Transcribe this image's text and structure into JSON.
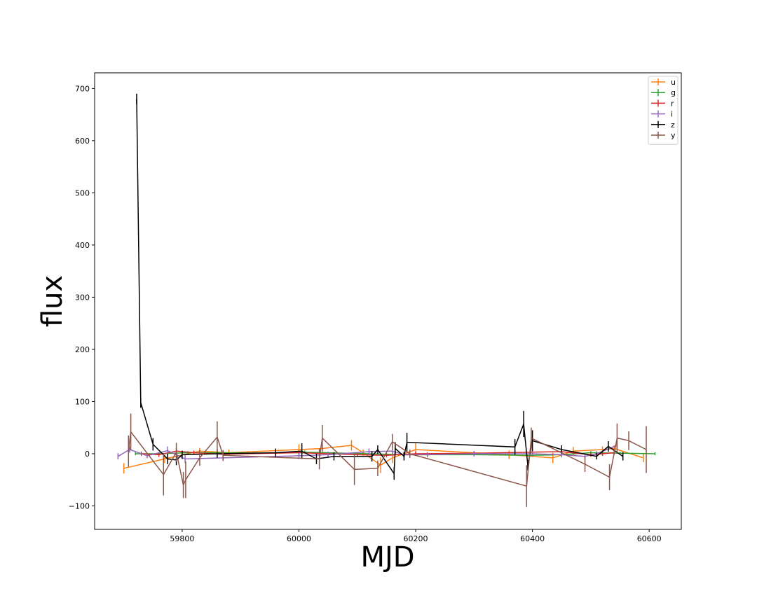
{
  "chart_data": {
    "type": "line",
    "xlabel": "MJD",
    "ylabel": "flux",
    "xlim": [
      59650,
      60655
    ],
    "ylim": [
      -145,
      730
    ],
    "xticks": [
      59800,
      60000,
      60200,
      60400,
      60600
    ],
    "yticks": [
      -100,
      0,
      100,
      200,
      300,
      400,
      500,
      600,
      700
    ],
    "legend_position": "top-right",
    "error_bars": true,
    "series": [
      {
        "name": "u",
        "color": "#ff7f0e",
        "points": [
          [
            59700,
            -28,
            10
          ],
          [
            59770,
            -10,
            8
          ],
          [
            59830,
            5,
            6
          ],
          [
            59880,
            2,
            6
          ],
          [
            60000,
            8,
            10
          ],
          [
            60040,
            10,
            9
          ],
          [
            60090,
            16,
            10
          ],
          [
            60110,
            2,
            6
          ],
          [
            60140,
            -22,
            15
          ],
          [
            60160,
            -8,
            10
          ],
          [
            60200,
            8,
            12
          ],
          [
            60360,
            -2,
            8
          ],
          [
            60435,
            -8,
            10
          ],
          [
            60470,
            5,
            8
          ],
          [
            60520,
            8,
            6
          ],
          [
            60540,
            10,
            6
          ],
          [
            60590,
            -8,
            8
          ]
        ]
      },
      {
        "name": "g",
        "color": "#2ca02c",
        "points": [
          [
            59720,
            0,
            3
          ],
          [
            59760,
            0,
            3
          ],
          [
            59810,
            2,
            3
          ],
          [
            59860,
            2,
            3
          ],
          [
            59960,
            1,
            3
          ],
          [
            60010,
            3,
            3
          ],
          [
            60120,
            0,
            3
          ],
          [
            60180,
            -2,
            3
          ],
          [
            60300,
            -2,
            3
          ],
          [
            60400,
            -3,
            3
          ],
          [
            60450,
            -2,
            3
          ],
          [
            60500,
            2,
            3
          ],
          [
            60550,
            1,
            3
          ],
          [
            60610,
            0,
            3
          ]
        ]
      },
      {
        "name": "r",
        "color": "#d62728",
        "points": [
          [
            59730,
            0,
            4
          ],
          [
            59760,
            -2,
            4
          ],
          [
            59790,
            5,
            6
          ],
          [
            59820,
            2,
            4
          ],
          [
            59870,
            -1,
            4
          ],
          [
            60000,
            2,
            4
          ],
          [
            60100,
            -2,
            4
          ],
          [
            60150,
            -3,
            4
          ],
          [
            60200,
            0,
            4
          ],
          [
            60300,
            1,
            4
          ],
          [
            60400,
            3,
            5
          ],
          [
            60450,
            4,
            4
          ],
          [
            60500,
            -2,
            4
          ],
          [
            60520,
            0,
            4
          ],
          [
            60540,
            2,
            4
          ]
        ]
      },
      {
        "name": "i",
        "color": "#9467bd",
        "points": [
          [
            59690,
            -5,
            6
          ],
          [
            59710,
            8,
            6
          ],
          [
            59740,
            -4,
            5
          ],
          [
            59775,
            6,
            8
          ],
          [
            59805,
            -10,
            8
          ],
          [
            59870,
            -8,
            6
          ],
          [
            60000,
            -4,
            6
          ],
          [
            60050,
            -2,
            6
          ],
          [
            60120,
            4,
            6
          ],
          [
            60160,
            5,
            7
          ],
          [
            60180,
            -2,
            6
          ],
          [
            60220,
            -2,
            5
          ],
          [
            60300,
            0,
            5
          ],
          [
            60400,
            0,
            5
          ],
          [
            60450,
            -2,
            5
          ],
          [
            60490,
            -5,
            6
          ],
          [
            60510,
            0,
            5
          ],
          [
            60545,
            16,
            6
          ]
        ]
      },
      {
        "name": "z",
        "color": "#000000",
        "points": [
          [
            59722,
            680,
            10
          ],
          [
            59729,
            98,
            10
          ],
          [
            59750,
            18,
            12
          ],
          [
            59775,
            -10,
            10
          ],
          [
            59790,
            -12,
            10
          ],
          [
            59800,
            -2,
            8
          ],
          [
            59860,
            0,
            8
          ],
          [
            59960,
            2,
            8
          ],
          [
            60005,
            5,
            15
          ],
          [
            60030,
            -10,
            10
          ],
          [
            60060,
            -5,
            8
          ],
          [
            60125,
            -5,
            10
          ],
          [
            60135,
            8,
            8
          ],
          [
            60165,
            10,
            12
          ],
          [
            60163,
            -38,
            12
          ],
          [
            60180,
            -5,
            8
          ],
          [
            60185,
            22,
            18
          ],
          [
            60370,
            13,
            15
          ],
          [
            60385,
            57,
            25
          ],
          [
            60392,
            -22,
            10
          ],
          [
            60400,
            25,
            20
          ],
          [
            60450,
            8,
            8
          ],
          [
            60510,
            -5,
            6
          ],
          [
            60530,
            14,
            10
          ],
          [
            60555,
            -5,
            8
          ]
        ]
      },
      {
        "name": "y",
        "color": "#8c564b",
        "points": [
          [
            59708,
            5,
            30
          ],
          [
            59712,
            42,
            35
          ],
          [
            59768,
            -40,
            40
          ],
          [
            59790,
            3,
            18
          ],
          [
            59802,
            -60,
            25
          ],
          [
            59806,
            -50,
            35
          ],
          [
            59830,
            -8,
            15
          ],
          [
            59860,
            32,
            30
          ],
          [
            59870,
            -3,
            10
          ],
          [
            60035,
            -10,
            20
          ],
          [
            60040,
            30,
            25
          ],
          [
            60095,
            -30,
            30
          ],
          [
            60135,
            -28,
            15
          ],
          [
            60160,
            23,
            15
          ],
          [
            60190,
            0,
            8
          ],
          [
            60390,
            -62,
            40
          ],
          [
            60398,
            30,
            20
          ],
          [
            60490,
            -20,
            15
          ],
          [
            60532,
            -45,
            25
          ],
          [
            60545,
            30,
            28
          ],
          [
            60565,
            25,
            18
          ],
          [
            60595,
            8,
            45
          ]
        ]
      }
    ]
  }
}
